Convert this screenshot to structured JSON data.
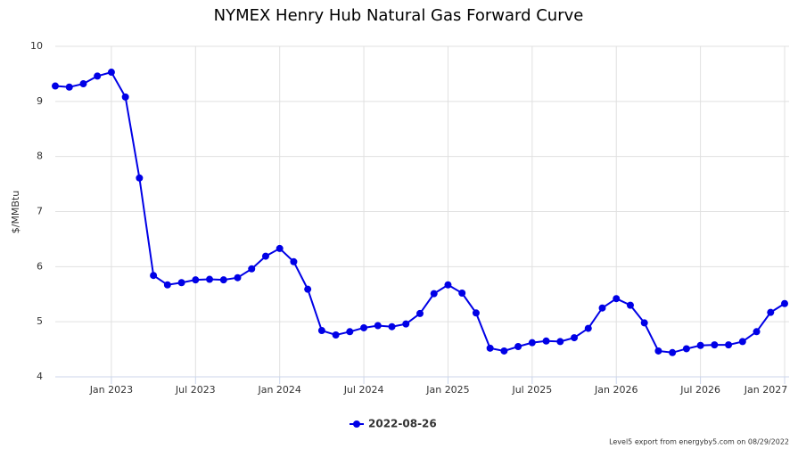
{
  "chart_data": {
    "type": "line",
    "title": "NYMEX Henry Hub Natural Gas Forward Curve",
    "ylabel": "$/MMBtu",
    "x": [
      "2022-09",
      "2022-10",
      "2022-11",
      "2022-12",
      "2023-01",
      "2023-02",
      "2023-03",
      "2023-04",
      "2023-05",
      "2023-06",
      "2023-07",
      "2023-08",
      "2023-09",
      "2023-10",
      "2023-11",
      "2023-12",
      "2024-01",
      "2024-02",
      "2024-03",
      "2024-04",
      "2024-05",
      "2024-06",
      "2024-07",
      "2024-08",
      "2024-09",
      "2024-10",
      "2024-11",
      "2024-12",
      "2025-01",
      "2025-02",
      "2025-03",
      "2025-04",
      "2025-05",
      "2025-06",
      "2025-07",
      "2025-08",
      "2025-09",
      "2025-10",
      "2025-11",
      "2025-12",
      "2026-01",
      "2026-02",
      "2026-03",
      "2026-04",
      "2026-05",
      "2026-06",
      "2026-07",
      "2026-08",
      "2026-09",
      "2026-10",
      "2026-11",
      "2026-12",
      "2027-01"
    ],
    "series": [
      {
        "name": "2022-08-26",
        "color": "#0000e6",
        "values": [
          9.28,
          9.26,
          9.32,
          9.46,
          9.53,
          9.08,
          7.61,
          5.84,
          5.67,
          5.71,
          5.76,
          5.77,
          5.76,
          5.8,
          5.96,
          6.19,
          6.33,
          6.09,
          5.59,
          4.84,
          4.76,
          4.82,
          4.89,
          4.93,
          4.91,
          4.96,
          5.15,
          5.51,
          5.67,
          5.52,
          5.16,
          4.52,
          4.47,
          4.55,
          4.62,
          4.65,
          4.64,
          4.71,
          4.88,
          5.25,
          5.42,
          5.3,
          4.98,
          4.47,
          4.44,
          4.51,
          4.57,
          4.58,
          4.58,
          4.64,
          4.82,
          5.17,
          5.33
        ]
      }
    ],
    "xlim": [
      "2022-09",
      "2027-01"
    ],
    "xticks": [
      {
        "value": "2023-01",
        "label": "Jan 2023"
      },
      {
        "value": "2023-07",
        "label": "Jul 2023"
      },
      {
        "value": "2024-01",
        "label": "Jan 2024"
      },
      {
        "value": "2024-07",
        "label": "Jul 2024"
      },
      {
        "value": "2025-01",
        "label": "Jan 2025"
      },
      {
        "value": "2025-07",
        "label": "Jul 2025"
      },
      {
        "value": "2026-01",
        "label": "Jan 2026"
      },
      {
        "value": "2026-07",
        "label": "Jul 2026"
      },
      {
        "value": "2027-01",
        "label": "Jan 2027"
      }
    ],
    "ylim": [
      4,
      10
    ],
    "yticks": [
      4,
      5,
      6,
      7,
      8,
      9,
      10
    ],
    "grid": true,
    "footer": "Level5 export from energyby5.com on 08/29/2022"
  }
}
